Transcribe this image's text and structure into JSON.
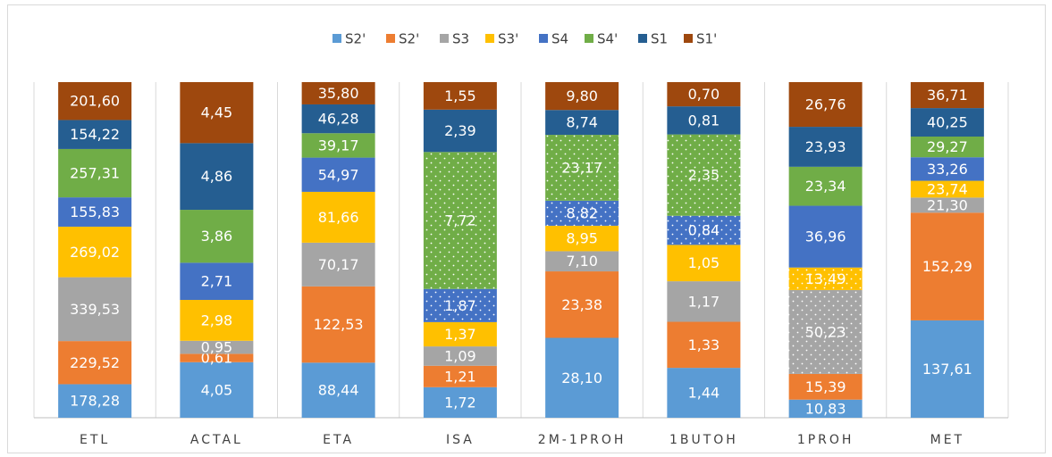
{
  "chart_data": {
    "type": "bar",
    "stacking": "percent",
    "categories": [
      "ETL",
      "ACTAL",
      "ETA",
      "ISA",
      "2M-1PROH",
      "1BUTOH",
      "1PROH",
      "MET"
    ],
    "series": [
      {
        "name": "S2'",
        "color": "#5b9bd5",
        "values": [
          178.28,
          4.05,
          88.44,
          1.72,
          28.1,
          1.44,
          10.83,
          137.61
        ],
        "value_labels": [
          "178,28",
          "4,05",
          "88,44",
          "1,72",
          "28,10",
          "1,44",
          "10,83",
          "137,61"
        ]
      },
      {
        "name": "S2'",
        "color": "#ed7d31",
        "values": [
          229.52,
          0.61,
          122.53,
          1.21,
          23.38,
          1.33,
          15.39,
          152.29
        ],
        "value_labels": [
          "229,52",
          "0,61",
          "122,53",
          "1,21",
          "23,38",
          "1,33",
          "15,39",
          "152,29"
        ]
      },
      {
        "name": "S3",
        "color": "#a5a5a5",
        "values": [
          339.53,
          0.95,
          70.17,
          1.09,
          7.1,
          1.17,
          50.23,
          21.3
        ],
        "value_labels": [
          "339,53",
          "0,95",
          "70,17",
          "1,09",
          "7,10",
          "1,17",
          "50,23",
          "21,30"
        ],
        "dotted": [
          6
        ]
      },
      {
        "name": "S3'",
        "color": "#ffc000",
        "values": [
          269.02,
          2.98,
          81.66,
          1.37,
          8.95,
          1.05,
          13.49,
          23.74
        ],
        "value_labels": [
          "269,02",
          "2,98",
          "81,66",
          "1,37",
          "8,95",
          "1,05",
          "13,49",
          "23,74"
        ],
        "dotted": [
          6
        ]
      },
      {
        "name": "S4",
        "color": "#4472c4",
        "values": [
          155.83,
          2.71,
          54.97,
          1.87,
          8.82,
          0.84,
          36.96,
          33.26
        ],
        "value_labels": [
          "155,83",
          "2,71",
          "54,97",
          "1,87",
          "8,82",
          "0,84",
          "36,96",
          "33,26"
        ],
        "dotted": [
          3,
          4,
          5
        ]
      },
      {
        "name": "S4'",
        "color": "#70ad47",
        "values": [
          257.31,
          3.86,
          39.17,
          7.72,
          23.17,
          2.35,
          23.34,
          29.27
        ],
        "value_labels": [
          "257,31",
          "3,86",
          "39,17",
          "7,72",
          "23,17",
          "2,35",
          "23,34",
          "29,27"
        ],
        "dotted": [
          3,
          4,
          5
        ]
      },
      {
        "name": "S1",
        "color": "#255e91",
        "values": [
          154.22,
          4.86,
          46.28,
          2.39,
          8.74,
          0.81,
          23.93,
          40.25
        ],
        "value_labels": [
          "154,22",
          "4,86",
          "46,28",
          "2,39",
          "8,74",
          "0,81",
          "23,93",
          "40,25"
        ]
      },
      {
        "name": "S1'",
        "color": "#9e480e",
        "values": [
          201.6,
          4.45,
          35.8,
          1.55,
          9.8,
          0.7,
          26.76,
          36.71
        ],
        "value_labels": [
          "201,60",
          "4,45",
          "35,80",
          "1,55",
          "9,80",
          "0,70",
          "26,76",
          "36,71"
        ]
      }
    ]
  }
}
